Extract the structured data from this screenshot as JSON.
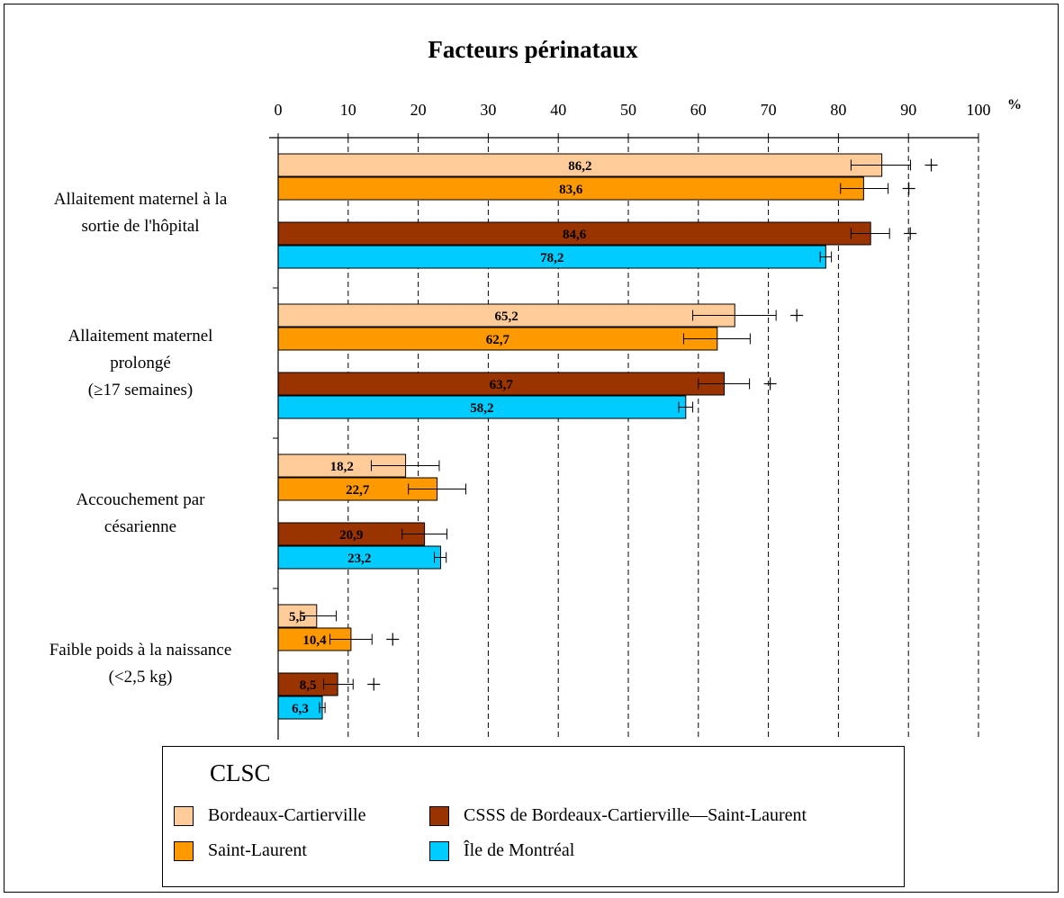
{
  "chart_data": {
    "type": "bar",
    "orientation": "horizontal",
    "title": "Facteurs périnataux",
    "unit_label": "%",
    "xlim": [
      0,
      100
    ],
    "x_ticks": [
      "0",
      "10",
      "20",
      "30",
      "40",
      "50",
      "60",
      "70",
      "80",
      "90",
      "100"
    ],
    "grid": true,
    "categories": [
      [
        "Allaitement maternel à la",
        "sortie de l'hôpital"
      ],
      [
        "Allaitement maternel",
        "prolongé",
        "(≥17 semaines)"
      ],
      [
        "Accouchement par",
        "césarienne"
      ],
      [
        "Faible poids à la naissance",
        "(<2,5 kg)"
      ]
    ],
    "series": [
      {
        "name": "Bordeaux-Cartierville",
        "color": "#FFCC99",
        "label_color": "#000000",
        "values": [
          86.2,
          65.2,
          18.2,
          5.5
        ],
        "labels": [
          "86,2",
          "65,2",
          "18,2",
          "5,5"
        ],
        "err_low": [
          81.8,
          59.2,
          13.3,
          3.2
        ],
        "err_high": [
          90.3,
          71.1,
          23.0,
          8.3
        ],
        "plus": [
          true,
          true,
          false,
          false
        ]
      },
      {
        "name": "Saint-Laurent",
        "color": "#FF9900",
        "label_color": "#000000",
        "values": [
          83.6,
          62.7,
          22.7,
          10.4
        ],
        "labels": [
          "83,6",
          "62,7",
          "22,7",
          "10,4"
        ],
        "err_low": [
          80.3,
          57.9,
          18.6,
          7.4
        ],
        "err_high": [
          87.1,
          67.4,
          26.8,
          13.4
        ],
        "plus": [
          true,
          false,
          false,
          true
        ]
      },
      {
        "name": "CSSS de Bordeaux-Cartierville—Saint-Laurent",
        "color": "#993300",
        "label_color": "#FFFFFF",
        "values": [
          84.6,
          63.7,
          20.9,
          8.5
        ],
        "labels": [
          "84,6",
          "63,7",
          "20,9",
          "8,5"
        ],
        "err_low": [
          81.8,
          60.0,
          17.7,
          6.5
        ],
        "err_high": [
          87.3,
          67.3,
          24.1,
          10.7
        ],
        "plus": [
          true,
          true,
          false,
          true
        ]
      },
      {
        "name": "Île de Montréal",
        "color": "#00CCFF",
        "label_color": "#000000",
        "values": [
          78.2,
          58.2,
          23.2,
          6.3
        ],
        "labels": [
          "78,2",
          "58,2",
          "23,2",
          "6,3"
        ],
        "err_low": [
          77.4,
          57.2,
          22.3,
          5.9
        ],
        "err_high": [
          79.0,
          59.2,
          24.0,
          6.7
        ],
        "plus": [
          false,
          false,
          false,
          false
        ]
      }
    ],
    "legend": {
      "title": "CLSC",
      "placement": "bottom"
    }
  }
}
